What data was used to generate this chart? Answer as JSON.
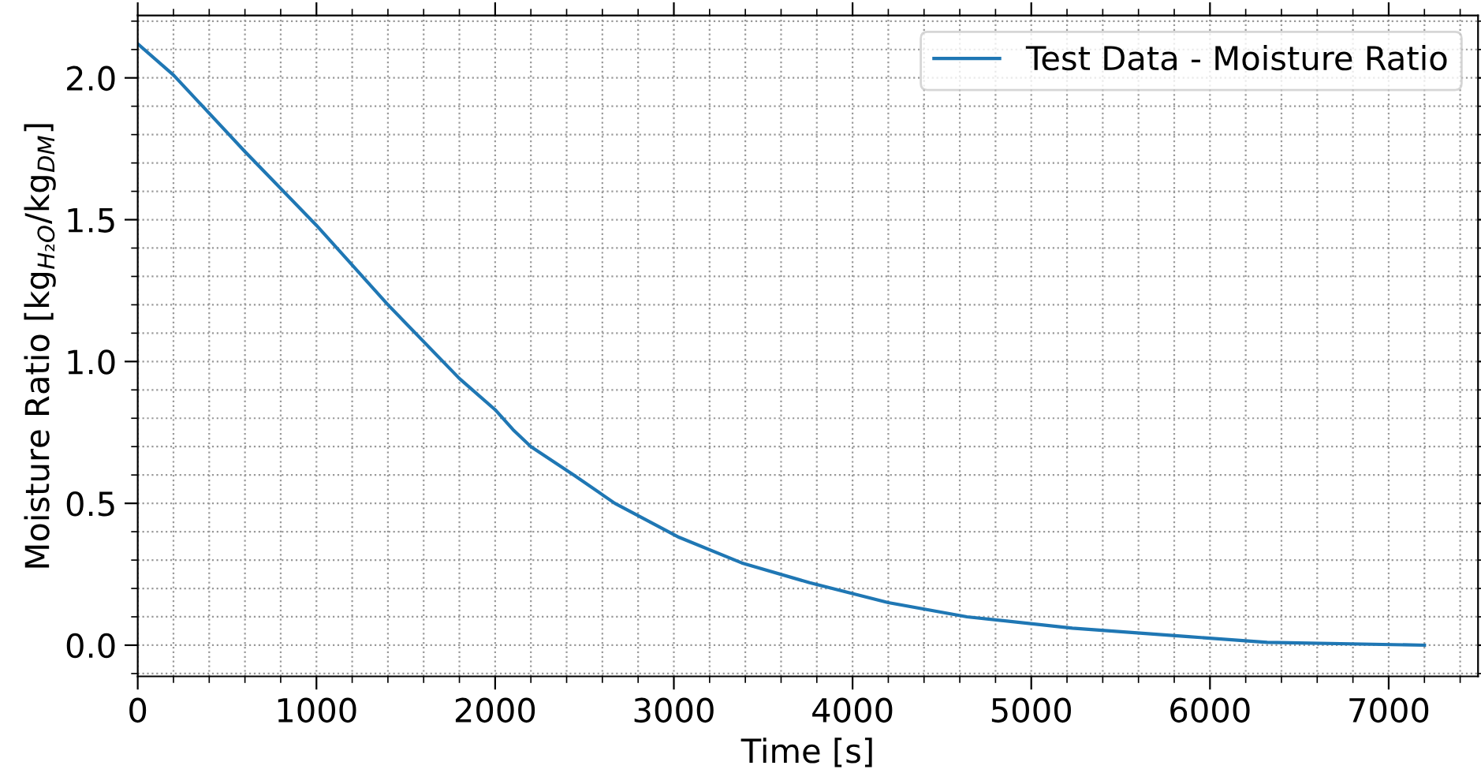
{
  "chart_data": {
    "type": "line",
    "xlabel": "Time [s]",
    "ylabel": "Moisture Ratio [kg$_{H₂O}$/kg$_{DM}$]",
    "xlim": [
      0,
      7500
    ],
    "ylim": [
      -0.11,
      2.22
    ],
    "xticks": [
      0,
      {
        "value": 200,
        "label": null
      },
      {
        "value": 400,
        "label": null
      },
      {
        "value": 600,
        "label": null
      },
      {
        "value": 800,
        "label": null
      },
      1000,
      {
        "value": 1200,
        "label": null
      },
      {
        "value": 1400,
        "label": null
      },
      {
        "value": 1600,
        "label": null
      },
      {
        "value": 1800,
        "label": null
      },
      2000,
      {
        "value": 2200,
        "label": null
      },
      {
        "value": 2400,
        "label": null
      },
      {
        "value": 2600,
        "label": null
      },
      {
        "value": 2800,
        "label": null
      },
      3000,
      {
        "value": 3200,
        "label": null
      },
      {
        "value": 3400,
        "label": null
      },
      {
        "value": 3600,
        "label": null
      },
      {
        "value": 3800,
        "label": null
      },
      4000,
      {
        "value": 4200,
        "label": null
      },
      {
        "value": 4400,
        "label": null
      },
      {
        "value": 4600,
        "label": null
      },
      {
        "value": 4800,
        "label": null
      },
      5000,
      {
        "value": 5200,
        "label": null
      },
      {
        "value": 5400,
        "label": null
      },
      {
        "value": 5600,
        "label": null
      },
      {
        "value": 5800,
        "label": null
      },
      6000,
      {
        "value": 6200,
        "label": null
      },
      {
        "value": 6400,
        "label": null
      },
      {
        "value": 6600,
        "label": null
      },
      {
        "value": 6800,
        "label": null
      },
      7000,
      {
        "value": 7200,
        "label": null
      },
      {
        "value": 7400,
        "label": null
      }
    ],
    "yticks": [
      {
        "value": -0.1,
        "label": null
      },
      {
        "value": 0.0,
        "label": "0.0"
      },
      {
        "value": 0.1,
        "label": null
      },
      {
        "value": 0.2,
        "label": null
      },
      {
        "value": 0.3,
        "label": null
      },
      {
        "value": 0.4,
        "label": null
      },
      {
        "value": 0.5,
        "label": "0.5"
      },
      {
        "value": 0.6,
        "label": null
      },
      {
        "value": 0.7,
        "label": null
      },
      {
        "value": 0.8,
        "label": null
      },
      {
        "value": 0.9,
        "label": null
      },
      {
        "value": 1.0,
        "label": "1.0"
      },
      {
        "value": 1.1,
        "label": null
      },
      {
        "value": 1.2,
        "label": null
      },
      {
        "value": 1.3,
        "label": null
      },
      {
        "value": 1.4,
        "label": null
      },
      {
        "value": 1.5,
        "label": "1.5"
      },
      {
        "value": 1.6,
        "label": null
      },
      {
        "value": 1.7,
        "label": null
      },
      {
        "value": 1.8,
        "label": null
      },
      {
        "value": 1.9,
        "label": null
      },
      {
        "value": 2.0,
        "label": "2.0"
      },
      {
        "value": 2.1,
        "label": null
      },
      {
        "value": 2.2,
        "label": null
      }
    ],
    "grid": true,
    "legend": "top right",
    "marker": "none",
    "line_style": "solid",
    "series": [
      {
        "name": "Test Data - Moisture Ratio",
        "color": "#1f77b4",
        "x": [
          0,
          200,
          600,
          1000,
          1400,
          1800,
          2000,
          2100,
          2200,
          2440,
          2670,
          3030,
          3380,
          3760,
          4200,
          4640,
          5230,
          5880,
          6320,
          7200
        ],
        "values": [
          2.12,
          2.01,
          1.74,
          1.48,
          1.2,
          0.94,
          0.83,
          0.76,
          0.7,
          0.6,
          0.5,
          0.38,
          0.29,
          0.22,
          0.15,
          0.1,
          0.06,
          0.03,
          0.01,
          0.0
        ]
      }
    ]
  }
}
